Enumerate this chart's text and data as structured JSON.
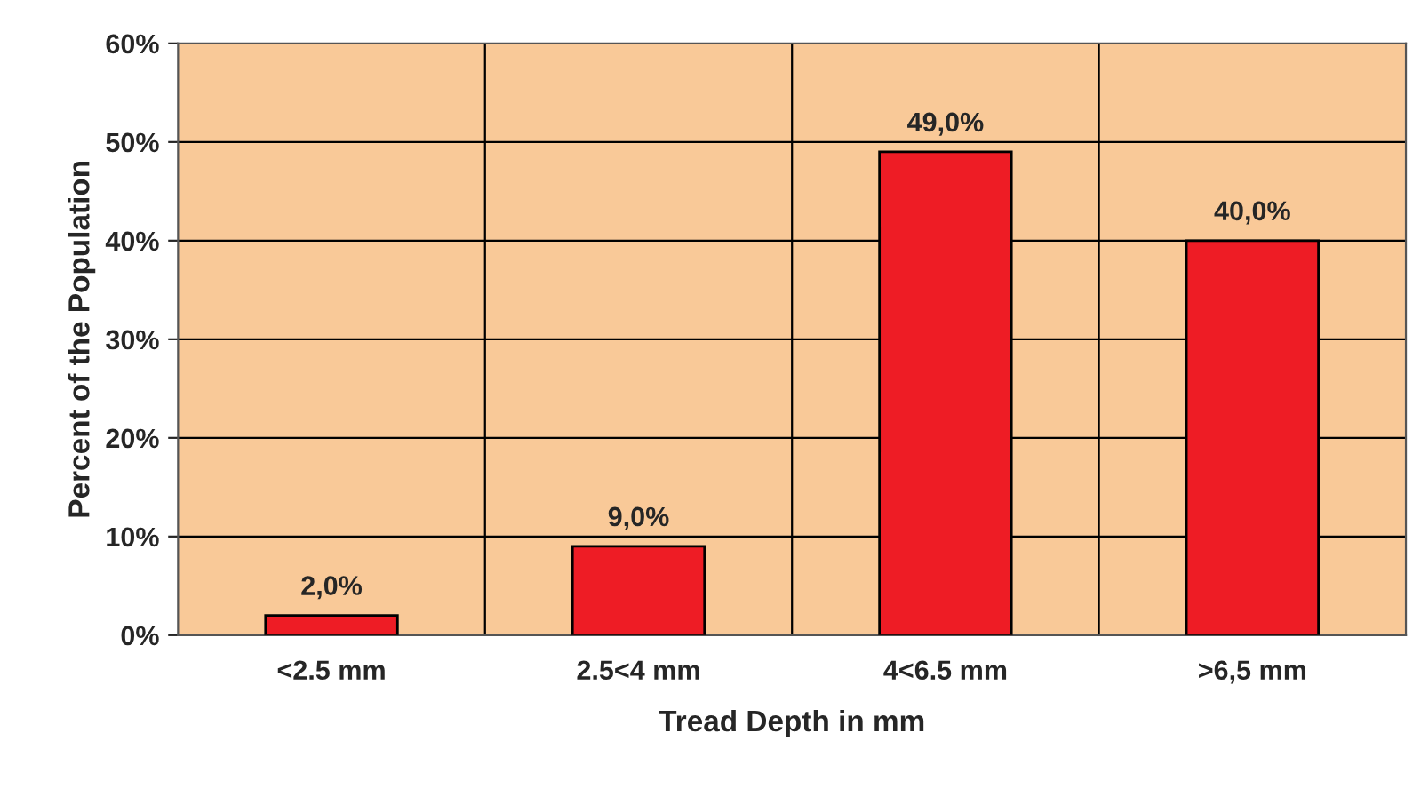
{
  "chart_data": {
    "type": "bar",
    "xlabel": "Tread Depth in mm",
    "ylabel": "Percent of the Population",
    "categories": [
      "<2.5 mm",
      "2.5<4 mm",
      "4<6.5 mm",
      ">6,5 mm"
    ],
    "values": [
      2.0,
      9.0,
      49.0,
      40.0
    ],
    "value_labels": [
      "2,0%",
      "9,0%",
      "49,0%",
      "40,0%"
    ],
    "color": "#ee1c25",
    "ylim": [
      0,
      60
    ],
    "yticks": [
      {
        "value": 0,
        "label": "0%"
      },
      {
        "value": 10,
        "label": "10%"
      },
      {
        "value": 20,
        "label": "20%"
      },
      {
        "value": 30,
        "label": "30%"
      },
      {
        "value": 40,
        "label": "40%"
      },
      {
        "value": 50,
        "label": "50%"
      },
      {
        "value": 60,
        "label": "60%"
      }
    ],
    "grid": true
  }
}
